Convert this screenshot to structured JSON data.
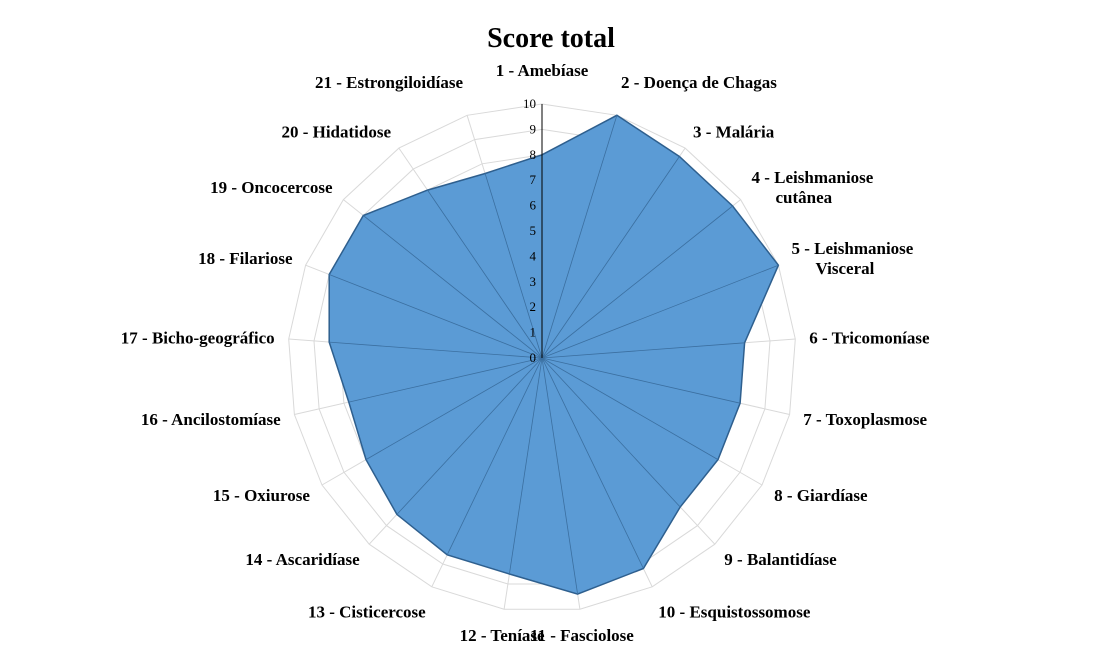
{
  "chart_data": {
    "type": "radar",
    "title": "Score total",
    "rmin": 0,
    "rmax": 10,
    "ticks": [
      "0",
      "1",
      "2",
      "3",
      "4",
      "5",
      "6",
      "7",
      "8",
      "9",
      "10"
    ],
    "categories": [
      [
        "1 - Amebíase"
      ],
      [
        "2 - Doença de Chagas"
      ],
      [
        "3 - Malária"
      ],
      [
        "4 - Leishmaniose",
        "cutânea"
      ],
      [
        "5 - Leishmaniose",
        "Visceral"
      ],
      [
        "6 - Tricomoníase"
      ],
      [
        "7 - Toxoplasmose"
      ],
      [
        "8 - Giardíase"
      ],
      [
        "9 - Balantidíase"
      ],
      [
        "10 - Esquistossomose"
      ],
      [
        "11 - Fasciolose"
      ],
      [
        "12 - Teníase"
      ],
      [
        "13 - Cisticercose"
      ],
      [
        "14 - Ascaridíase"
      ],
      [
        "15 - Oxiurose"
      ],
      [
        "16 - Ancilostomíase"
      ],
      [
        "17 - Bicho-geográfico"
      ],
      [
        "18 - Filariose"
      ],
      [
        "19 - Oncocercose"
      ],
      [
        "20 - Hidatidose"
      ],
      [
        "21 - Estrongiloidíase"
      ]
    ],
    "values": [
      8,
      10,
      9.6,
      9.6,
      10,
      8,
      8,
      8,
      8,
      9.2,
      9.4,
      8.6,
      8.6,
      8.4,
      8,
      7.8,
      8.4,
      9,
      9,
      8,
      7.6
    ],
    "fill_color": "#5b9bd5",
    "line_color": "#2e5f8e",
    "grid": true
  }
}
